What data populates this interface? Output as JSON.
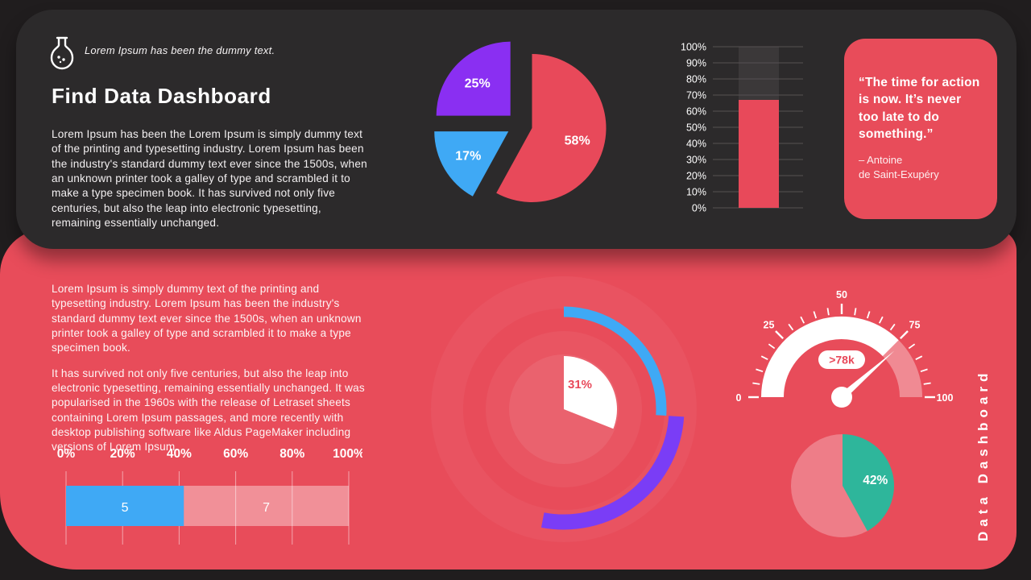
{
  "theme": {
    "background": "#201d1e",
    "panel_dark": "#2c2a2b",
    "panel_red": "#e84c5a",
    "blue": "#3fa9f5",
    "purple": "#8a2ff2",
    "teal": "#2eb69b",
    "white": "#ffffff"
  },
  "header": {
    "tagline": "Lorem Ipsum has been the dummy text.",
    "title": "Find Data Dashboard",
    "body": "Lorem Ipsum has been the Lorem Ipsum is simply dummy text of the printing and typesetting industry.  Lorem Ipsum has been the industry's standard dummy text ever since the 1500s, when an unknown printer took a galley of type and scrambled it to make a type specimen book. It has survived not only five centuries, but also the leap into electronic typesetting, remaining essentially unchanged."
  },
  "quote": {
    "text": "“The time for action is now. It’s never too late to do something.”",
    "author_line1": "– Antoine",
    "author_line2": "de Saint-Exupéry"
  },
  "bottom": {
    "para1": "Lorem Ipsum is simply dummy text of the printing and typesetting industry. Lorem Ipsum has been the industry's standard dummy text ever since the 1500s, when an unknown printer took a galley of type and scrambled it to make a type specimen book.",
    "para2": "It has survived not only five centuries, but also the leap into electronic typesetting, remaining essentially unchanged. It was popularised in the 1960s with the release of Letraset sheets containing Lorem Ipsum passages, and more recently with desktop publishing software like Aldus PageMaker including versions of Lorem Ipsum.",
    "side_label": "Data Dashboard"
  },
  "chart_data": [
    {
      "id": "exploded_pie",
      "type": "pie",
      "exploded": true,
      "start_angle_deg": 0,
      "direction": "clockwise",
      "slices": [
        {
          "label": "58%",
          "value": 58,
          "color": "#e8495a"
        },
        {
          "label": "17%",
          "value": 17,
          "color": "#3fa9f5"
        },
        {
          "label": "25%",
          "value": 25,
          "color": "#8a2ff2"
        }
      ]
    },
    {
      "id": "column_progress",
      "type": "bar",
      "categories": [
        ""
      ],
      "values": [
        67
      ],
      "ylim": [
        0,
        100
      ],
      "tick_step": 10,
      "tick_suffix": "%",
      "bar_color": "#e8495a",
      "track_color": "#3b3839",
      "grid": true,
      "grid_color": "#565152"
    },
    {
      "id": "stacked_hbar",
      "type": "bar",
      "orientation": "horizontal",
      "stacked": true,
      "xlim": [
        0,
        100
      ],
      "tick_labels": [
        "0%",
        "20%",
        "40%",
        "60%",
        "80%",
        "100%"
      ],
      "grid": true,
      "segments": [
        {
          "label": "5",
          "value": 5,
          "color": "#3fa9f5"
        },
        {
          "label": "7",
          "value": 7,
          "color": "rgba(255,255,255,0.38)"
        }
      ]
    },
    {
      "id": "radial_progress",
      "type": "donut",
      "center_slice": {
        "label": "31%",
        "value": 31,
        "color": "#ffffff",
        "label_color": "#e8495a"
      },
      "arcs": [
        {
          "name": "blue-arc",
          "start_pct": 0,
          "end_pct": 26,
          "color": "#3fa9f5",
          "radius": 121,
          "width": 13
        },
        {
          "name": "purple-arc",
          "start_pct": 26,
          "end_pct": 53,
          "color": "#7a3df6",
          "radius": 140,
          "width": 19
        }
      ]
    },
    {
      "id": "gauge",
      "type": "gauge",
      "min": 0,
      "max": 100,
      "tick_step": 5,
      "major_labels": [
        0,
        25,
        50,
        75,
        100
      ],
      "value": 77,
      "filled_to": 75,
      "value_label": ">78k",
      "band_color": "#ffffff",
      "band_rest_color": "rgba(255,255,255,0.35)",
      "label_color": "#e8495a"
    },
    {
      "id": "simple_pie",
      "type": "pie",
      "start_angle_deg": 0,
      "slices": [
        {
          "label": "42%",
          "value": 42,
          "color": "#2eb69b"
        },
        {
          "label": "",
          "value": 58,
          "color": "rgba(255,255,255,0.28)"
        }
      ]
    }
  ]
}
